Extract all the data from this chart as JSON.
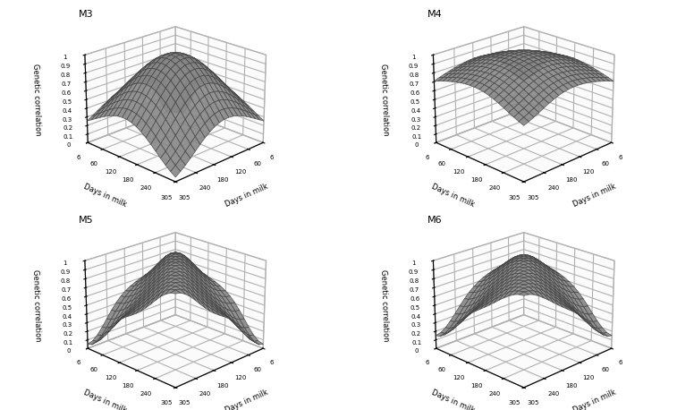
{
  "titles": [
    "M3",
    "M4",
    "M5",
    "M6"
  ],
  "xlabel": "Days in milk",
  "ylabel": "Days in milk",
  "zlabel": "Genetic correlation",
  "zticks": [
    0,
    0.1,
    0.2,
    0.3,
    0.4,
    0.5,
    0.6,
    0.7,
    0.8,
    0.9,
    1
  ],
  "xticks": [
    6,
    60,
    120,
    180,
    240,
    305
  ],
  "yticks": [
    6,
    60,
    120,
    180,
    240,
    305
  ],
  "zlim": [
    0,
    1
  ],
  "surface_color": "#b0b0b0",
  "surface_alpha": 0.9,
  "edge_color": "#444444",
  "background_color": "#ffffff",
  "elev": 22,
  "azim": -135,
  "figsize": [
    7.76,
    4.58
  ],
  "dpi": 100
}
